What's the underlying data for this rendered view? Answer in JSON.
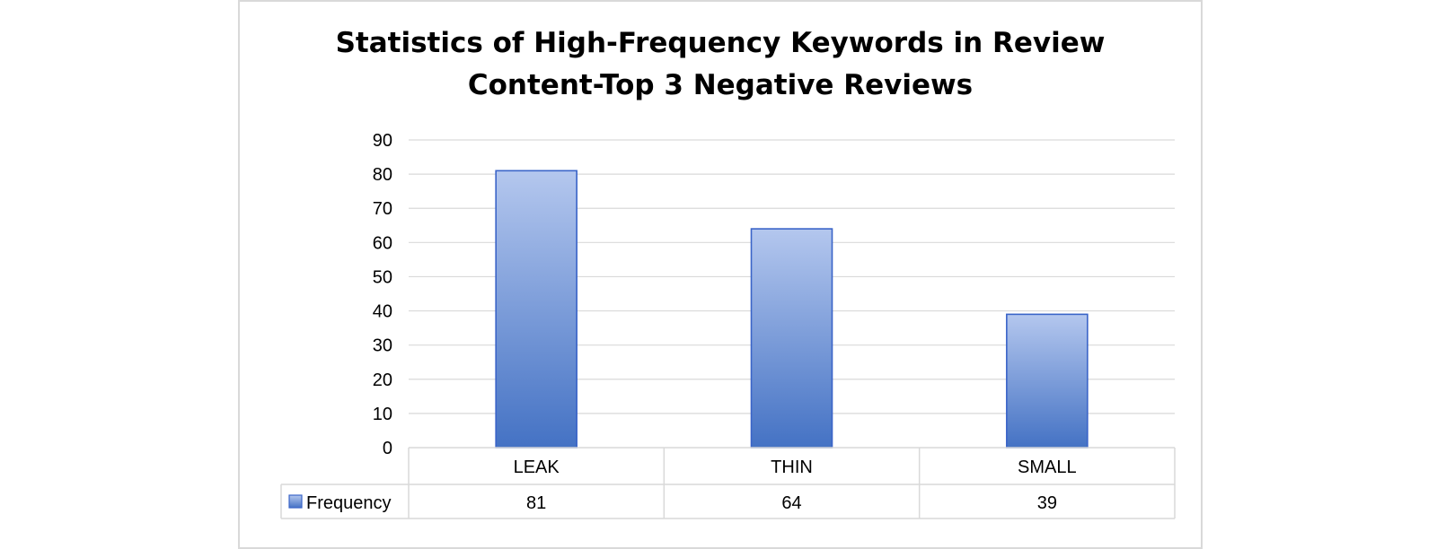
{
  "chart_data": {
    "type": "bar",
    "title_lines": [
      "Statistics of High-Frequency Keywords in Review",
      "Content-Top 3 Negative Reviews"
    ],
    "categories": [
      "LEAK",
      "THIN",
      "SMALL"
    ],
    "series": [
      {
        "name": "Frequency",
        "values": [
          81,
          64,
          39
        ]
      }
    ],
    "ylim": [
      0,
      90
    ],
    "yticks": [
      "0",
      "10",
      "20",
      "30",
      "40",
      "50",
      "60",
      "70",
      "80",
      "90"
    ],
    "grid": true,
    "legend": "data-table-left",
    "colors": {
      "bar_top": "#b4c7ee",
      "bar_bottom": "#4472c4",
      "bar_stroke": "#3a64c8",
      "grid": "#d9d9d9"
    }
  }
}
